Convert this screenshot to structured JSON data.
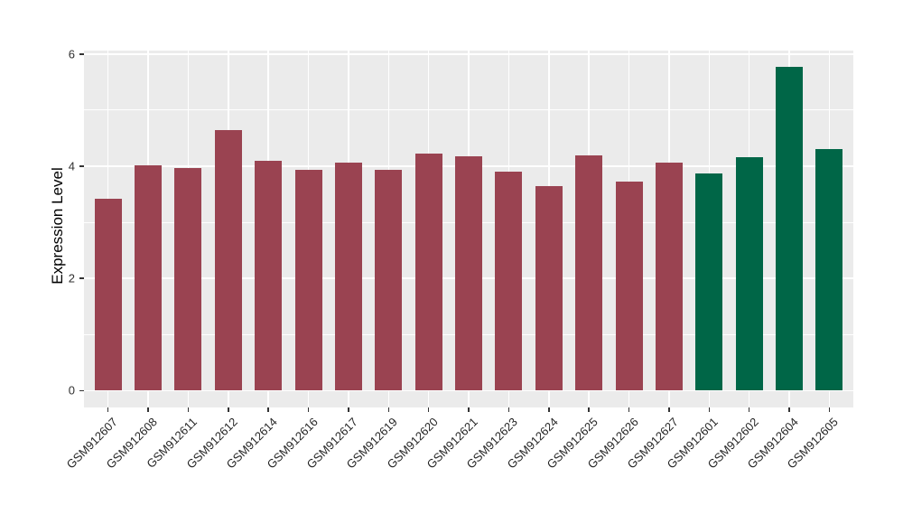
{
  "chart_data": {
    "type": "bar",
    "ylabel": "Expression Level",
    "xlabel": "",
    "categories": [
      "GSM912607",
      "GSM912608",
      "GSM912611",
      "GSM912612",
      "GSM912614",
      "GSM912616",
      "GSM912617",
      "GSM912619",
      "GSM912620",
      "GSM912621",
      "GSM912623",
      "GSM912624",
      "GSM912625",
      "GSM912626",
      "GSM912627",
      "GSM912601",
      "GSM912602",
      "GSM912604",
      "GSM912605"
    ],
    "values": [
      3.42,
      4.01,
      3.96,
      4.64,
      4.1,
      3.93,
      4.06,
      3.93,
      4.22,
      4.17,
      3.9,
      3.64,
      4.2,
      3.72,
      4.07,
      3.87,
      4.16,
      5.77,
      4.31
    ],
    "bar_colors": [
      "#9A4351",
      "#9A4351",
      "#9A4351",
      "#9A4351",
      "#9A4351",
      "#9A4351",
      "#9A4351",
      "#9A4351",
      "#9A4351",
      "#9A4351",
      "#9A4351",
      "#9A4351",
      "#9A4351",
      "#9A4351",
      "#9A4351",
      "#006647",
      "#006647",
      "#006647",
      "#006647"
    ],
    "palette": {
      "maroon": "#9A4351",
      "green": "#006647"
    },
    "ylim": [
      -0.3,
      6.06
    ],
    "yticks_major": [
      0,
      2,
      4,
      6
    ],
    "yticks_minor": [
      1,
      3,
      5
    ],
    "ytick_labels": [
      "0",
      "2",
      "4",
      "6"
    ],
    "x_tick_rotation_deg": 45,
    "grid": "major and minor horizontal white lines, vertical white lines at each category",
    "legend_position": "none",
    "style": {
      "panel_background": "#EBEBEB",
      "grid_color": "#FFFFFF",
      "axis_text_color": "#303030",
      "tick_color": "#333333"
    }
  }
}
